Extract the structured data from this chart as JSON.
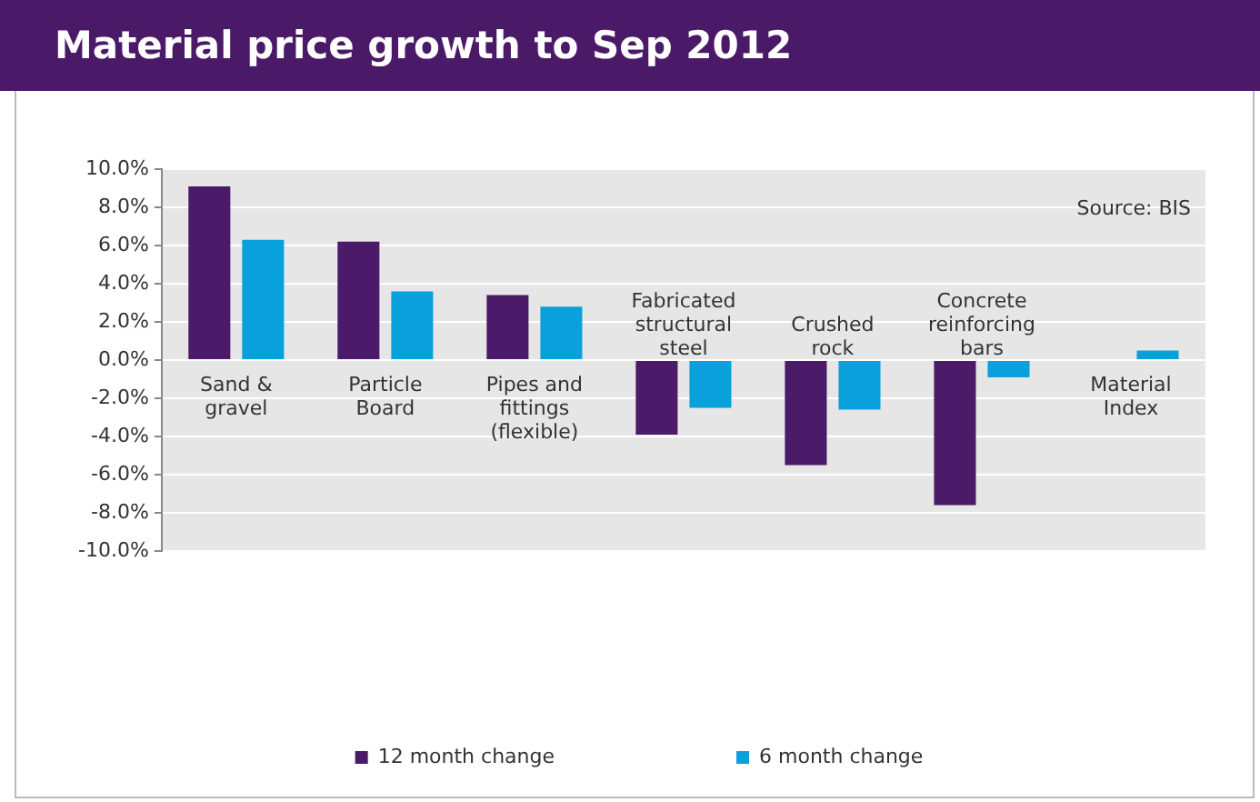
{
  "chart_data": {
    "type": "bar",
    "title": "Material price growth to Sep 2012",
    "categories": [
      "Sand & gravel",
      "Particle Board",
      "Pipes and fittings (flexible)",
      "Fabricated structural steel",
      "Crushed rock",
      "Concrete reinforcing bars",
      "Material Index"
    ],
    "series": [
      {
        "name": "12 month change",
        "color": "#4b1a68",
        "values": [
          9.1,
          6.2,
          3.4,
          -3.9,
          -5.5,
          -7.6,
          0
        ]
      },
      {
        "name": "6 month change",
        "color": "#0aa0dc",
        "values": [
          6.3,
          3.6,
          2.8,
          -2.5,
          -2.6,
          -0.9,
          0.5
        ]
      }
    ],
    "ylim": [
      -10,
      10
    ],
    "yticks": [
      {
        "value": -10,
        "label": "-10.0%"
      },
      {
        "value": -8,
        "label": "-8.0%"
      },
      {
        "value": -6,
        "label": "-6.0%"
      },
      {
        "value": -4,
        "label": "-4.0%"
      },
      {
        "value": -2,
        "label": "-2.0%"
      },
      {
        "value": 0,
        "label": "0.0%"
      },
      {
        "value": 2,
        "label": "2.0%"
      },
      {
        "value": 4,
        "label": "4.0%"
      },
      {
        "value": 6,
        "label": "6.0%"
      },
      {
        "value": 8,
        "label": "8.0%"
      },
      {
        "value": 10,
        "label": "10.0%"
      }
    ],
    "grid": "y",
    "legend": "bottom",
    "annotations": [
      "Source: BIS"
    ]
  }
}
